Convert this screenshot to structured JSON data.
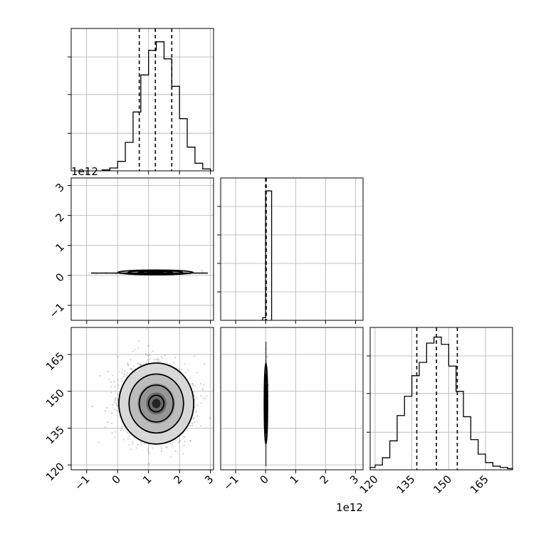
{
  "chart_data": {
    "type": "corner",
    "grid": true,
    "parameters": [
      {
        "index": 0,
        "range": [
          -1500000000000.0,
          3100000000000.0
        ],
        "ticks": [
          -1000000000000.0,
          0,
          1000000000000.0,
          2000000000000.0,
          3000000000000.0
        ],
        "tick_labels": [
          "−1",
          "0",
          "1",
          "2",
          "3"
        ],
        "offset_label": "1e12",
        "quantiles": [
          700000000000.0,
          1220000000000.0,
          1750000000000.0
        ]
      },
      {
        "index": 1,
        "range": [
          -1500000000000.0,
          3250000000000.0
        ],
        "ticks": [
          -1000000000000.0,
          0,
          1000000000000.0,
          2000000000000.0,
          3000000000000.0
        ],
        "tick_labels": [
          "−1",
          "0",
          "1",
          "2",
          "3"
        ],
        "offset_label": "1e12",
        "quantiles": [
          0.0,
          10000000000.0,
          20000000000.0
        ]
      },
      {
        "index": 2,
        "range": [
          118,
          176
        ],
        "ticks": [
          120,
          135,
          150,
          165
        ],
        "tick_labels": [
          "120",
          "135",
          "150",
          "165"
        ],
        "offset_label": "",
        "quantiles": [
          137,
          145,
          153.5
        ]
      }
    ],
    "histograms": [
      {
        "param": 0,
        "bin_edges": [
          -500000000000.0,
          -250000000000.0,
          0,
          250000000000.0,
          500000000000.0,
          750000000000.0,
          1000000000000.0,
          1250000000000.0,
          1500000000000.0,
          1750000000000.0,
          2000000000000.0,
          2250000000000.0,
          2500000000000.0,
          2750000000000.0,
          3000000000000.0
        ],
        "counts": [
          1,
          3,
          10,
          30,
          62,
          101,
          127,
          136,
          118,
          89,
          55,
          25,
          8,
          2
        ],
        "ymax": 150
      },
      {
        "param": 1,
        "bin_edges": [
          -100000000000.0,
          0,
          200000000000.0
        ],
        "counts": [
          0.02,
          1,
          0
        ],
        "ymax": 1.1
      },
      {
        "param": 2,
        "bin_edges": [
          117,
          120,
          123,
          126,
          129,
          132,
          135,
          138,
          141,
          144,
          147,
          150,
          153,
          156,
          159,
          162,
          165,
          168,
          171,
          174,
          177
        ],
        "counts": [
          2,
          4,
          10,
          24,
          45,
          61,
          78,
          89,
          105,
          110,
          104,
          86,
          65,
          44,
          25,
          13,
          6,
          3,
          2,
          1
        ],
        "ymax": 118
      }
    ],
    "pairs": [
      {
        "x_param": 0,
        "y_param": 1,
        "center": [
          1220000000000.0,
          100000000000.0
        ],
        "spread": [
          550000000000.0,
          35000000000.0
        ]
      },
      {
        "x_param": 0,
        "y_param": 2,
        "center": [
          1250000000000.0,
          145
        ],
        "spread": [
          550000000000.0,
          7.5
        ]
      },
      {
        "x_param": 1,
        "y_param": 2,
        "center": [
          10000000000.0,
          145
        ],
        "spread": [
          25000000000.0,
          7.5
        ]
      }
    ]
  }
}
